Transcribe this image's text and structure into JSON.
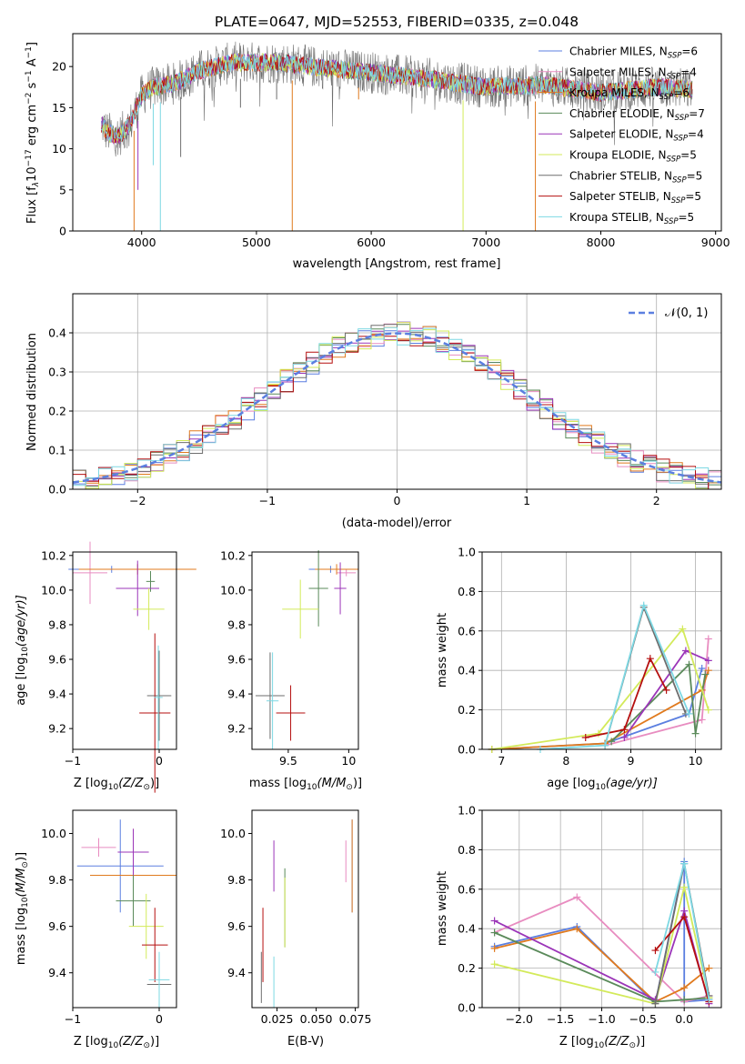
{
  "figure": {
    "suptitle": "PLATE=0647, MJD=52553, FIBERID=0335, z=0.048"
  },
  "series_colors": [
    "#5b7fe0",
    "#e88cc0",
    "#e07a1e",
    "#5a8a5a",
    "#9b35b8",
    "#d3ea5a",
    "#6e6e6e",
    "#b50f0f",
    "#7dd8e3"
  ],
  "chart_data": [
    {
      "id": "spectrum",
      "type": "line",
      "xlabel": "wavelength [Angstrom, rest frame]",
      "ylabel_main": "Flux [f",
      "ylabel_sub": "λ",
      "ylabel_rest": "10",
      "ylabel_sup": "−17",
      "ylabel_tail": " erg cm",
      "ylabel_sup2": "−2",
      "ylabel_tail2": " s",
      "ylabel_sup3": "−1",
      "ylabel_tail3": " A",
      "ylabel_sup4": "−1",
      "ylabel_end": "]",
      "xlim": [
        3400,
        9050
      ],
      "ylim": [
        0,
        24
      ],
      "xticks": [
        4000,
        5000,
        6000,
        7000,
        8000,
        9000
      ],
      "yticks": [
        0,
        5,
        10,
        15,
        20
      ],
      "grid": false,
      "legend_position": "top-right",
      "legend": [
        {
          "label": "Chabrier MILES, N",
          "sub": "SSP",
          "tail": "=6"
        },
        {
          "label": "Salpeter MILES, N",
          "sub": "SSP",
          "tail": "=4"
        },
        {
          "label": "Kroupa MILES, N",
          "sub": "SSP",
          "tail": "=6"
        },
        {
          "label": "Chabrier ELODIE, N",
          "sub": "SSP",
          "tail": "=7"
        },
        {
          "label": "Salpeter ELODIE, N",
          "sub": "SSP",
          "tail": "=4"
        },
        {
          "label": "Kroupa ELODIE, N",
          "sub": "SSP",
          "tail": "=5"
        },
        {
          "label": "Chabrier STELIB, N",
          "sub": "SSP",
          "tail": "=5"
        },
        {
          "label": "Salpeter STELIB, N",
          "sub": "SSP",
          "tail": "=5"
        },
        {
          "label": "Kroupa STELIB, N",
          "sub": "SSP",
          "tail": "=5"
        }
      ],
      "continuum": [
        [
          3650,
          13
        ],
        [
          3700,
          12
        ],
        [
          3800,
          11.5
        ],
        [
          3900,
          13
        ],
        [
          4000,
          16.5
        ],
        [
          4100,
          17.5
        ],
        [
          4300,
          18
        ],
        [
          4500,
          19.5
        ],
        [
          4800,
          20.5
        ],
        [
          5200,
          20.5
        ],
        [
          5600,
          19.8
        ],
        [
          6000,
          19.3
        ],
        [
          6500,
          18.5
        ],
        [
          7000,
          17.5
        ],
        [
          7500,
          17.8
        ],
        [
          8000,
          16.8
        ],
        [
          8500,
          17.5
        ],
        [
          8800,
          17.2
        ]
      ],
      "dips": [
        [
          3934,
          0
        ],
        [
          3968,
          5
        ],
        [
          4101,
          8
        ],
        [
          4163,
          0
        ],
        [
          4340,
          9
        ],
        [
          4861,
          15
        ],
        [
          5176,
          16
        ],
        [
          5312,
          0
        ],
        [
          5890,
          16
        ],
        [
          6800,
          0
        ],
        [
          7430,
          0
        ]
      ]
    },
    {
      "id": "residual-histogram",
      "type": "bar",
      "xlabel": "(data-model)/error",
      "ylabel": "Normed distribution",
      "xlim": [
        -2.5,
        2.5
      ],
      "ylim": [
        0,
        0.5
      ],
      "xticks": [
        -2,
        -1,
        0,
        1,
        2
      ],
      "yticks": [
        0.0,
        0.1,
        0.2,
        0.3,
        0.4
      ],
      "grid": true,
      "legend_position": "top-right",
      "legend_label": "𝒩(0, 1)",
      "bin_width": 0.1
    },
    {
      "id": "age-vs-metallicity",
      "type": "scatter",
      "xlabel": "Z [log",
      "xlabel_sub": "10",
      "xlabel_tail": "(Z/Z",
      "xlabel_sub2": "⊙",
      "xlabel_end": ")]",
      "ylabel": "age  [log",
      "ylabel_sub": "10",
      "ylabel_tail": "(age/yr)]",
      "xlim": [
        -1.0,
        0.2
      ],
      "ylim": [
        9.08,
        10.22
      ],
      "xticks": [
        -1,
        0
      ],
      "yticks": [
        9.2,
        9.4,
        9.6,
        9.8,
        10.0,
        10.2
      ],
      "points": [
        {
          "x": -0.55,
          "y": 10.12,
          "xerr": 0.5,
          "yerr": 0.02
        },
        {
          "x": -0.8,
          "y": 10.1,
          "xerr": 0.2,
          "yerr": 0.18
        },
        {
          "x": -0.25,
          "y": 10.12,
          "xerr": 0.68,
          "yerr": 0.03
        },
        {
          "x": -0.1,
          "y": 10.05,
          "xerr": 0.05,
          "yerr": 0.06
        },
        {
          "x": -0.25,
          "y": 10.01,
          "xerr": 0.25,
          "yerr": 0.16
        },
        {
          "x": -0.12,
          "y": 9.89,
          "xerr": 0.18,
          "yerr": 0.12
        },
        {
          "x": 0.0,
          "y": 9.39,
          "xerr": 0.14,
          "yerr": 0.26
        },
        {
          "x": -0.05,
          "y": 9.29,
          "xerr": 0.18,
          "yerr": 0.46
        },
        {
          "x": -0.01,
          "y": 9.38,
          "xerr": 0.05,
          "yerr": 0.3
        }
      ]
    },
    {
      "id": "age-vs-mass",
      "type": "scatter",
      "xlabel": "mass [log",
      "xlabel_sub": "10",
      "xlabel_tail": "(M/M",
      "xlabel_sub2": "⊙",
      "xlabel_end": ")]",
      "ylabel": "",
      "xlim": [
        9.2,
        10.08
      ],
      "ylim": [
        9.08,
        10.22
      ],
      "xticks": [
        9.5,
        10.0
      ],
      "yticks": [
        9.2,
        9.4,
        9.6,
        9.8,
        10.0,
        10.2
      ],
      "points": [
        {
          "x": 9.85,
          "y": 10.12,
          "xerr": 0.18,
          "yerr": 0.02
        },
        {
          "x": 9.98,
          "y": 10.1,
          "xerr": 0.08,
          "yerr": 0.02
        },
        {
          "x": 9.9,
          "y": 10.12,
          "xerr": 0.18,
          "yerr": 0.03
        },
        {
          "x": 9.75,
          "y": 10.01,
          "xerr": 0.08,
          "yerr": 0.22
        },
        {
          "x": 9.93,
          "y": 10.01,
          "xerr": 0.05,
          "yerr": 0.15
        },
        {
          "x": 9.6,
          "y": 9.89,
          "xerr": 0.15,
          "yerr": 0.17
        },
        {
          "x": 9.35,
          "y": 9.39,
          "xerr": 0.12,
          "yerr": 0.25
        },
        {
          "x": 9.52,
          "y": 9.29,
          "xerr": 0.12,
          "yerr": 0.16
        },
        {
          "x": 9.37,
          "y": 9.36,
          "xerr": 0.05,
          "yerr": 0.28
        }
      ]
    },
    {
      "id": "mass-weight-vs-age",
      "type": "line",
      "xlabel": "age  [log",
      "xlabel_sub": "10",
      "xlabel_tail": "(age/yr)]",
      "ylabel": "mass weight",
      "xlim": [
        6.7,
        10.4
      ],
      "ylim": [
        0,
        1.0
      ],
      "xticks": [
        7,
        8,
        9,
        10
      ],
      "yticks": [
        0.0,
        0.2,
        0.4,
        0.6,
        0.8,
        1.0
      ],
      "grid": true,
      "series": [
        {
          "points": [
            [
              6.85,
              0
            ],
            [
              8.6,
              0.03
            ],
            [
              9.9,
              0.18
            ],
            [
              10.1,
              0.41
            ]
          ]
        },
        {
          "points": [
            [
              8.6,
              0.02
            ],
            [
              10.1,
              0.15
            ],
            [
              10.2,
              0.56
            ]
          ]
        },
        {
          "points": [
            [
              6.85,
              0
            ],
            [
              8.6,
              0.03
            ],
            [
              10.1,
              0.3
            ],
            [
              10.2,
              0.4
            ]
          ]
        },
        {
          "points": [
            [
              8.7,
              0.04
            ],
            [
              9.9,
              0.43
            ],
            [
              10.0,
              0.08
            ],
            [
              10.15,
              0.38
            ]
          ]
        },
        {
          "points": [
            [
              8.9,
              0.06
            ],
            [
              9.85,
              0.5
            ],
            [
              10.2,
              0.45
            ]
          ]
        },
        {
          "points": [
            [
              6.85,
              0
            ],
            [
              8.5,
              0.08
            ],
            [
              9.8,
              0.61
            ],
            [
              10.2,
              0.2
            ]
          ]
        },
        {
          "points": [
            [
              8.6,
              0.02
            ],
            [
              9.2,
              0.72
            ],
            [
              9.85,
              0.18
            ]
          ]
        },
        {
          "points": [
            [
              8.3,
              0.06
            ],
            [
              8.9,
              0.1
            ],
            [
              9.3,
              0.46
            ],
            [
              9.55,
              0.3
            ]
          ]
        },
        {
          "points": [
            [
              7.6,
              0
            ],
            [
              8.6,
              0.02
            ],
            [
              9.2,
              0.73
            ],
            [
              9.9,
              0.18
            ]
          ]
        }
      ]
    },
    {
      "id": "mass-vs-metallicity",
      "type": "scatter",
      "xlabel": "Z [log",
      "xlabel_sub": "10",
      "xlabel_tail": "(Z/Z",
      "xlabel_sub2": "⊙",
      "xlabel_end": ")]",
      "ylabel": "mass [log",
      "ylabel_sub": "10",
      "ylabel_tail": "(M/M",
      "ylabel_sub2": "⊙",
      "ylabel_end": ")]",
      "xlim": [
        -1.0,
        0.2
      ],
      "ylim": [
        9.25,
        10.1
      ],
      "xticks": [
        -1,
        0
      ],
      "yticks": [
        9.4,
        9.6,
        9.8,
        10.0
      ],
      "points": [
        {
          "x": -0.45,
          "y": 9.86,
          "xerr": 0.5,
          "yerr": 0.2
        },
        {
          "x": -0.7,
          "y": 9.94,
          "xerr": 0.2,
          "yerr": 0.04
        },
        {
          "x": -0.3,
          "y": 9.82,
          "xerr": 0.5,
          "yerr": 0.2
        },
        {
          "x": -0.3,
          "y": 9.71,
          "xerr": 0.2,
          "yerr": 0.11
        },
        {
          "x": -0.3,
          "y": 9.92,
          "xerr": 0.18,
          "yerr": 0.1
        },
        {
          "x": -0.15,
          "y": 9.6,
          "xerr": 0.2,
          "yerr": 0.14
        },
        {
          "x": 0.0,
          "y": 9.35,
          "xerr": 0.14,
          "yerr": 0.1
        },
        {
          "x": -0.05,
          "y": 9.52,
          "xerr": 0.15,
          "yerr": 0.16
        },
        {
          "x": 0.0,
          "y": 9.37,
          "xerr": 0.12,
          "yerr": 0.12
        }
      ]
    },
    {
      "id": "mass-vs-extinction",
      "type": "scatter",
      "xlabel": "E(B-V)",
      "ylabel": "",
      "xlim": [
        0.009,
        0.077
      ],
      "ylim": [
        9.25,
        10.1
      ],
      "xticks": [
        0.025,
        0.05,
        0.075
      ],
      "xticklabels": [
        "0.025",
        "0.050",
        "0.075"
      ],
      "yticks": [
        9.4,
        9.6,
        9.8,
        10.0
      ],
      "points": [
        {
          "x": 0.073,
          "y": 9.86,
          "xerr": 0,
          "yerr": 0.2
        },
        {
          "x": 0.069,
          "y": 9.88,
          "xerr": 0,
          "yerr": 0.09
        },
        {
          "x": 0.073,
          "y": 9.86,
          "xerr": 0,
          "yerr": 0.2
        },
        {
          "x": 0.03,
          "y": 9.68,
          "xerr": 0,
          "yerr": 0.17
        },
        {
          "x": 0.023,
          "y": 9.86,
          "xerr": 0,
          "yerr": 0.11
        },
        {
          "x": 0.03,
          "y": 9.66,
          "xerr": 0,
          "yerr": 0.15
        },
        {
          "x": 0.015,
          "y": 9.38,
          "xerr": 0,
          "yerr": 0.11
        },
        {
          "x": 0.016,
          "y": 9.52,
          "xerr": 0,
          "yerr": 0.16
        },
        {
          "x": 0.023,
          "y": 9.36,
          "xerr": 0,
          "yerr": 0.11
        }
      ]
    },
    {
      "id": "mass-weight-vs-metallicity",
      "type": "line",
      "xlabel": "Z [log",
      "xlabel_sub": "10",
      "xlabel_tail": "(Z/Z",
      "xlabel_sub2": "⊙",
      "xlabel_end": ")]",
      "ylabel": "mass weight",
      "xlim": [
        -2.45,
        0.45
      ],
      "ylim": [
        0,
        1.0
      ],
      "xticks": [
        -2.0,
        -1.5,
        -1.0,
        -0.5,
        0.0
      ],
      "xticklabels": [
        "−2.0",
        "−1.5",
        "−1.0",
        "−0.5",
        "0.0"
      ],
      "yticks": [
        0.0,
        0.2,
        0.4,
        0.6,
        0.8,
        1.0
      ],
      "grid": true,
      "series": [
        {
          "points": [
            [
              -2.3,
              0.31
            ],
            [
              -1.3,
              0.41
            ],
            [
              -0.35,
              0.02
            ],
            [
              0.0,
              0.74
            ],
            [
              0.0,
              0.03
            ],
            [
              0.3,
              0.04
            ]
          ]
        },
        {
          "points": [
            [
              -2.3,
              0.38
            ],
            [
              -1.3,
              0.56
            ],
            [
              0.0,
              0.03
            ],
            [
              0.3,
              0.06
            ]
          ]
        },
        {
          "points": [
            [
              -2.3,
              0.3
            ],
            [
              -1.3,
              0.4
            ],
            [
              -0.35,
              0.03
            ],
            [
              0.0,
              0.1
            ],
            [
              0.3,
              0.2
            ]
          ]
        },
        {
          "points": [
            [
              -2.3,
              0.38
            ],
            [
              -0.35,
              0.03
            ],
            [
              0.0,
              0.04
            ],
            [
              0.3,
              0.05
            ]
          ]
        },
        {
          "points": [
            [
              -2.3,
              0.44
            ],
            [
              -0.35,
              0.04
            ],
            [
              0.0,
              0.49
            ],
            [
              0.3,
              0.02
            ]
          ]
        },
        {
          "points": [
            [
              -2.3,
              0.22
            ],
            [
              -0.35,
              0.02
            ],
            [
              0.0,
              0.61
            ],
            [
              0.3,
              0.05
            ]
          ]
        },
        {
          "points": [
            [
              -0.35,
              0.02
            ],
            [
              0.0,
              0.73
            ],
            [
              0.3,
              0.06
            ]
          ]
        },
        {
          "points": [
            [
              -0.35,
              0.29
            ],
            [
              0.0,
              0.46
            ],
            [
              0.3,
              0.03
            ]
          ]
        },
        {
          "points": [
            [
              -0.35,
              0.18
            ],
            [
              0.0,
              0.73
            ],
            [
              0.3,
              0.04
            ]
          ]
        }
      ]
    }
  ]
}
